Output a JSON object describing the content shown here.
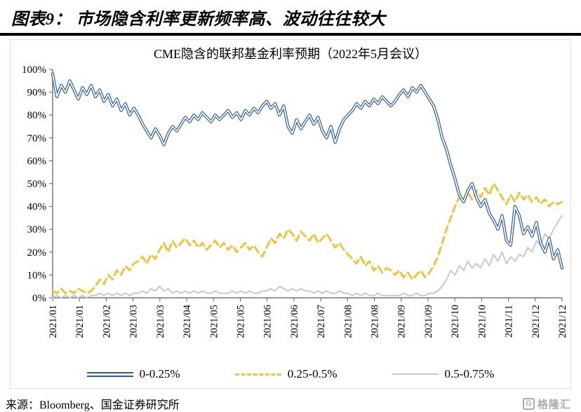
{
  "header": {
    "title": "图表9：  市场隐含利率更新频率高、波动往往较大"
  },
  "footer": {
    "source": "来源：Bloomberg、国金证券研究所",
    "logo_text": "格隆汇",
    "logo_icon_letter": "G"
  },
  "chart_data": {
    "type": "line",
    "title": "CME隐含的联邦基金利率预期（2022年5月会议）",
    "xlabel": "",
    "ylabel": "",
    "ylim": [
      0,
      100
    ],
    "grid": false,
    "legend_position": "bottom",
    "y_ticks": [
      0,
      10,
      20,
      30,
      40,
      50,
      60,
      70,
      80,
      90,
      100
    ],
    "y_tick_suffix": "%",
    "x_ticklabels": [
      "2021/01",
      "2021/01",
      "2021/02",
      "2021/03",
      "2021/03",
      "2021/04",
      "2021/05",
      "2021/05",
      "2021/06",
      "2021/06",
      "2021/07",
      "2021/08",
      "2021/08",
      "2021/09",
      "2021/09",
      "2021/10",
      "2021/10",
      "2021/11",
      "2021/12",
      "2021/12"
    ],
    "axis_color": "#595959",
    "series": [
      {
        "name": "0-0.25%",
        "color": "#2e5b97",
        "style": "double-solid",
        "values": [
          98,
          88,
          93,
          90,
          95,
          91,
          87,
          92,
          89,
          93,
          88,
          91,
          86,
          89,
          84,
          87,
          82,
          85,
          80,
          83,
          80,
          76,
          73,
          70,
          74,
          71,
          67,
          72,
          75,
          73,
          76,
          79,
          77,
          80,
          78,
          81,
          79,
          77,
          80,
          78,
          80,
          82,
          79,
          81,
          78,
          82,
          80,
          83,
          81,
          84,
          86,
          83,
          85,
          80,
          84,
          75,
          72,
          78,
          74,
          77,
          80,
          76,
          79,
          73,
          70,
          75,
          68,
          74,
          78,
          80,
          82,
          85,
          83,
          86,
          84,
          87,
          85,
          88,
          86,
          84,
          86,
          89,
          91,
          88,
          92,
          90,
          93,
          90,
          87,
          84,
          78,
          70,
          65,
          58,
          52,
          45,
          42,
          47,
          50,
          44,
          40,
          43,
          37,
          34,
          30,
          36,
          25,
          23,
          40,
          36,
          28,
          31,
          27,
          33,
          24,
          20,
          26,
          17,
          21,
          13
        ]
      },
      {
        "name": "0.25-0.5%",
        "color": "#eec33f",
        "style": "dashed",
        "values": [
          3,
          2,
          4,
          2,
          3,
          2,
          4,
          3,
          2,
          3,
          5,
          8,
          6,
          10,
          8,
          12,
          10,
          14,
          12,
          15,
          16,
          18,
          15,
          19,
          17,
          21,
          24,
          20,
          25,
          22,
          24,
          26,
          23,
          25,
          22,
          24,
          21,
          23,
          25,
          22,
          24,
          21,
          23,
          20,
          22,
          24,
          21,
          23,
          20,
          18,
          22,
          26,
          24,
          28,
          26,
          30,
          28,
          25,
          29,
          27,
          25,
          28,
          24,
          26,
          28,
          25,
          22,
          24,
          21,
          19,
          17,
          15,
          18,
          14,
          16,
          12,
          14,
          11,
          13,
          12,
          10,
          12,
          9,
          11,
          8,
          10,
          12,
          9,
          11,
          14,
          18,
          24,
          30,
          35,
          40,
          44,
          42,
          46,
          43,
          47,
          44,
          48,
          45,
          50,
          47,
          44,
          41,
          45,
          42,
          46,
          43,
          45,
          42,
          44,
          41,
          43,
          40,
          42,
          41,
          42
        ]
      },
      {
        "name": "0.5-0.75%",
        "color": "#c9c9c9",
        "style": "solid",
        "values": [
          0,
          1,
          0,
          1,
          0,
          1,
          0,
          1,
          0,
          1,
          1,
          2,
          1,
          2,
          1,
          2,
          1,
          2,
          1,
          2,
          2,
          3,
          2,
          4,
          3,
          5,
          3,
          4,
          2,
          3,
          2,
          3,
          2,
          3,
          2,
          3,
          2,
          2,
          3,
          2,
          2,
          2,
          3,
          2,
          3,
          2,
          3,
          2,
          2,
          3,
          3,
          4,
          3,
          5,
          4,
          3,
          4,
          3,
          4,
          3,
          3,
          2,
          3,
          2,
          3,
          2,
          2,
          3,
          2,
          2,
          1,
          2,
          1,
          2,
          1,
          1,
          2,
          1,
          1,
          1,
          1,
          1,
          2,
          1,
          1,
          2,
          1,
          1,
          2,
          2,
          3,
          5,
          8,
          12,
          10,
          14,
          12,
          16,
          13,
          15,
          13,
          17,
          14,
          19,
          16,
          20,
          15,
          18,
          16,
          19,
          18,
          22,
          20,
          25,
          23,
          28,
          26,
          30,
          33,
          36
        ]
      }
    ]
  }
}
